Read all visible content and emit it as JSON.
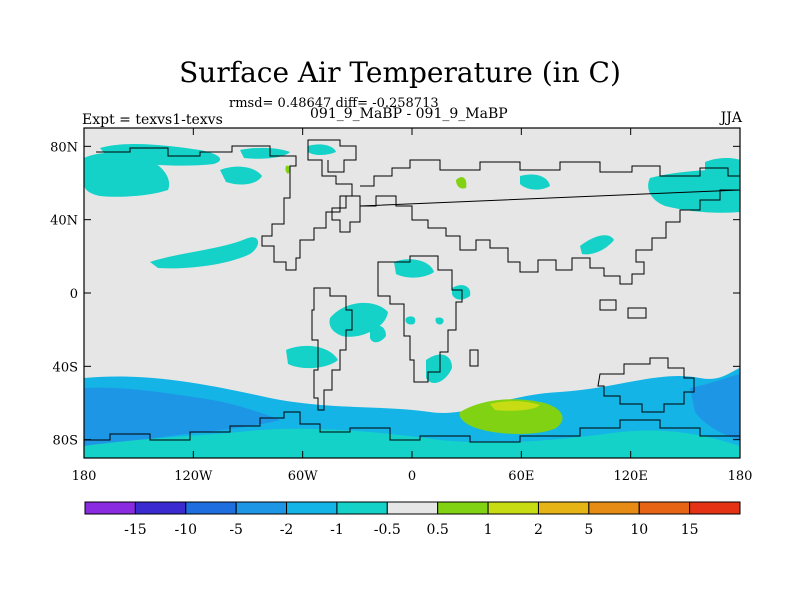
{
  "chart_data": {
    "type": "heatmap",
    "title": "Surface Air Temperature (in C)",
    "stats_text": "rmsd= 0.48647 diff= -0.258713",
    "subtitle": "091_9_MaBP - 091_9_MaBP",
    "left_label": "Expt = texvs1-texvs",
    "right_label": "JJA",
    "xlim": [
      -180,
      180
    ],
    "ylim": [
      -90,
      90
    ],
    "x_ticks": [
      {
        "value": -180,
        "label": "180"
      },
      {
        "value": -120,
        "label": "120W"
      },
      {
        "value": -60,
        "label": "60W"
      },
      {
        "value": 0,
        "label": "0"
      },
      {
        "value": 60,
        "label": "60E"
      },
      {
        "value": 120,
        "label": "120E"
      },
      {
        "value": 180,
        "label": "180"
      }
    ],
    "y_ticks": [
      {
        "value": 80,
        "label": "80N"
      },
      {
        "value": 40,
        "label": "40N"
      },
      {
        "value": 0,
        "label": "0"
      },
      {
        "value": -40,
        "label": "40S"
      },
      {
        "value": -80,
        "label": "80S"
      }
    ],
    "colorbar": {
      "colors": [
        "#8a2be2",
        "#3a2ad0",
        "#1e6ee0",
        "#1e96e6",
        "#14b4e6",
        "#14d2c8",
        "#e6e6e6",
        "#82d214",
        "#c8dc14",
        "#e6b414",
        "#e68c14",
        "#e66414",
        "#e63214"
      ],
      "labels": [
        "-15",
        "-10",
        "-5",
        "-2",
        "-1",
        "-0.5",
        "0.5",
        "1",
        "2",
        "5",
        "10",
        "15"
      ]
    },
    "regions": [
      {
        "level": "-1",
        "color": "#14d2c8",
        "area": "arctic-pacific-band",
        "lon_range": [
          -180,
          -130
        ],
        "lat_range": [
          55,
          72
        ]
      },
      {
        "level": "-1",
        "color": "#14d2c8",
        "area": "north-atlantic",
        "lon_range": [
          -95,
          -45
        ],
        "lat_range": [
          62,
          75
        ]
      },
      {
        "level": "-1",
        "color": "#14d2c8",
        "area": "east-pacific",
        "lon_range": [
          -140,
          -80
        ],
        "lat_range": [
          15,
          30
        ]
      },
      {
        "level": "-1",
        "color": "#14d2c8",
        "area": "east-siberia-pacific",
        "lon_range": [
          130,
          180
        ],
        "lat_range": [
          40,
          70
        ]
      },
      {
        "level": "-1",
        "color": "#14d2c8",
        "area": "africa-equatorial",
        "lon_range": [
          -45,
          20
        ],
        "lat_range": [
          -30,
          5
        ]
      },
      {
        "level": "-1",
        "color": "#14d2c8",
        "area": "south-atlantic",
        "lon_range": [
          -70,
          -40
        ],
        "lat_range": [
          -45,
          -30
        ]
      },
      {
        "level": "-2",
        "color": "#14b4e6",
        "area": "southern-ocean",
        "lon_range": [
          -180,
          180
        ],
        "lat_range": [
          -90,
          -45
        ]
      },
      {
        "level": "-5",
        "color": "#1e96e6",
        "area": "southern-ocean-core",
        "lon_range": [
          -180,
          -110
        ],
        "lat_range": [
          -85,
          -55
        ]
      },
      {
        "level": "1",
        "color": "#82d214",
        "area": "south-indian-ocean",
        "lon_range": [
          35,
          80
        ],
        "lat_range": [
          -75,
          -58
        ]
      },
      {
        "level": "2",
        "color": "#c8dc14",
        "area": "south-indian-ocean-core",
        "lon_range": [
          45,
          65
        ],
        "lat_range": [
          -66,
          -59
        ]
      }
    ]
  }
}
